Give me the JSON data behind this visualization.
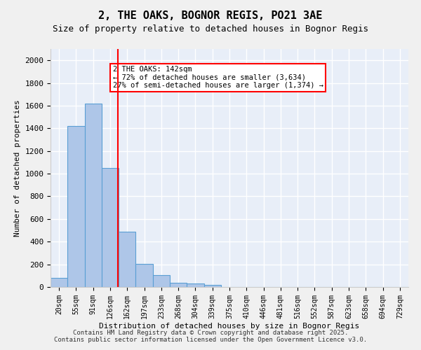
{
  "title_line1": "2, THE OAKS, BOGNOR REGIS, PO21 3AE",
  "title_line2": "Size of property relative to detached houses in Bognor Regis",
  "xlabel": "Distribution of detached houses by size in Bognor Regis",
  "ylabel": "Number of detached properties",
  "categories": [
    "20sqm",
    "55sqm",
    "91sqm",
    "126sqm",
    "162sqm",
    "197sqm",
    "233sqm",
    "268sqm",
    "304sqm",
    "339sqm",
    "375sqm",
    "410sqm",
    "446sqm",
    "481sqm",
    "516sqm",
    "552sqm",
    "587sqm",
    "623sqm",
    "658sqm",
    "694sqm",
    "729sqm"
  ],
  "values": [
    80,
    1420,
    1620,
    1050,
    490,
    205,
    105,
    38,
    28,
    20,
    0,
    0,
    0,
    0,
    0,
    0,
    0,
    0,
    0,
    0,
    0
  ],
  "bar_color": "#aec6e8",
  "bar_edge_color": "#5a9fd4",
  "bg_color": "#e8eef8",
  "grid_color": "#ffffff",
  "vline_x": 142,
  "vline_color": "red",
  "annotation_text": "2 THE OAKS: 142sqm\n← 72% of detached houses are smaller (3,634)\n27% of semi-detached houses are larger (1,374) →",
  "annotation_box_color": "white",
  "annotation_edge_color": "red",
  "ylim": [
    0,
    2100
  ],
  "yticks": [
    0,
    200,
    400,
    600,
    800,
    1000,
    1200,
    1400,
    1600,
    1800,
    2000
  ],
  "footer_line1": "Contains HM Land Registry data © Crown copyright and database right 2025.",
  "footer_line2": "Contains public sector information licensed under the Open Government Licence v3.0."
}
